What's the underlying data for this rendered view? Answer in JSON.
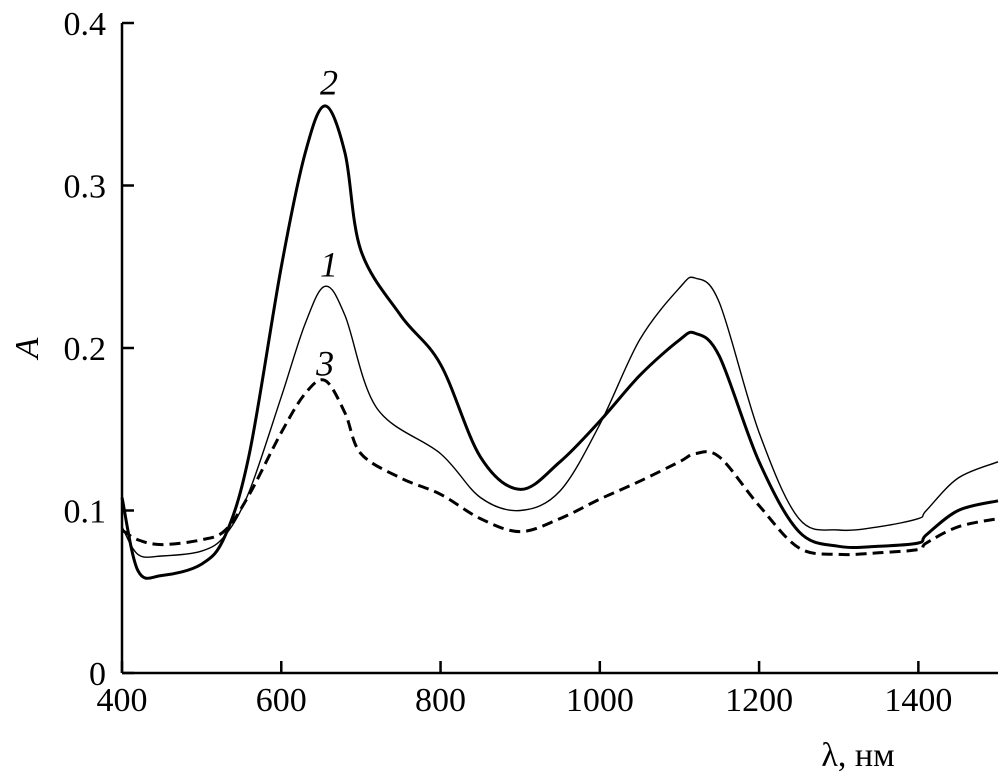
{
  "chart_data": {
    "type": "line",
    "xlabel": "λ, нм",
    "ylabel": "A",
    "xlim": [
      400,
      1500
    ],
    "ylim": [
      0,
      0.4
    ],
    "x_ticks": [
      400,
      600,
      800,
      1000,
      1200,
      1400
    ],
    "x_tick_labels": [
      "400",
      "600",
      "800",
      "1000",
      "1200",
      "1400"
    ],
    "y_ticks": [
      0,
      0.1,
      0.2,
      0.3,
      0.4
    ],
    "y_tick_labels": [
      "0",
      "0.1",
      "0.2",
      "0.3",
      "0.4"
    ],
    "grid": false,
    "legend": "none",
    "series": [
      {
        "label": "1",
        "style": "thin-solid",
        "color": "#000000",
        "x": [
          400,
          420,
          450,
          500,
          530,
          560,
          600,
          630,
          655,
          680,
          720,
          800,
          850,
          900,
          950,
          1000,
          1050,
          1100,
          1120,
          1150,
          1200,
          1250,
          1300,
          1350,
          1400,
          1410,
          1450,
          1500
        ],
        "y": [
          0.09,
          0.073,
          0.072,
          0.075,
          0.085,
          0.112,
          0.17,
          0.215,
          0.238,
          0.22,
          0.163,
          0.135,
          0.108,
          0.1,
          0.112,
          0.153,
          0.205,
          0.237,
          0.243,
          0.228,
          0.148,
          0.095,
          0.088,
          0.09,
          0.095,
          0.1,
          0.12,
          0.13
        ]
      },
      {
        "label": "2",
        "style": "thick-solid",
        "color": "#000000",
        "x": [
          400,
          420,
          450,
          500,
          530,
          560,
          600,
          630,
          655,
          680,
          700,
          750,
          800,
          850,
          900,
          950,
          1000,
          1050,
          1100,
          1120,
          1150,
          1200,
          1250,
          1300,
          1350,
          1400,
          1410,
          1450,
          1500
        ],
        "y": [
          0.108,
          0.063,
          0.06,
          0.067,
          0.085,
          0.135,
          0.25,
          0.32,
          0.349,
          0.32,
          0.26,
          0.22,
          0.19,
          0.133,
          0.113,
          0.13,
          0.155,
          0.183,
          0.205,
          0.209,
          0.195,
          0.13,
          0.087,
          0.078,
          0.078,
          0.08,
          0.085,
          0.1,
          0.106
        ]
      },
      {
        "label": "3",
        "style": "dashed",
        "color": "#000000",
        "x": [
          400,
          420,
          450,
          500,
          530,
          560,
          600,
          630,
          655,
          680,
          700,
          750,
          800,
          850,
          900,
          950,
          1000,
          1050,
          1100,
          1120,
          1150,
          1200,
          1250,
          1300,
          1350,
          1400,
          1410,
          1450,
          1500
        ],
        "y": [
          0.088,
          0.082,
          0.079,
          0.082,
          0.088,
          0.11,
          0.148,
          0.172,
          0.18,
          0.16,
          0.135,
          0.12,
          0.11,
          0.095,
          0.087,
          0.095,
          0.107,
          0.118,
          0.13,
          0.135,
          0.133,
          0.103,
          0.077,
          0.073,
          0.074,
          0.076,
          0.08,
          0.09,
          0.095
        ]
      }
    ],
    "curve_labels": [
      {
        "text": "1",
        "x": 660,
        "y": 0.244
      },
      {
        "text": "2",
        "x": 660,
        "y": 0.356
      },
      {
        "text": "3",
        "x": 655,
        "y": 0.183
      }
    ]
  }
}
